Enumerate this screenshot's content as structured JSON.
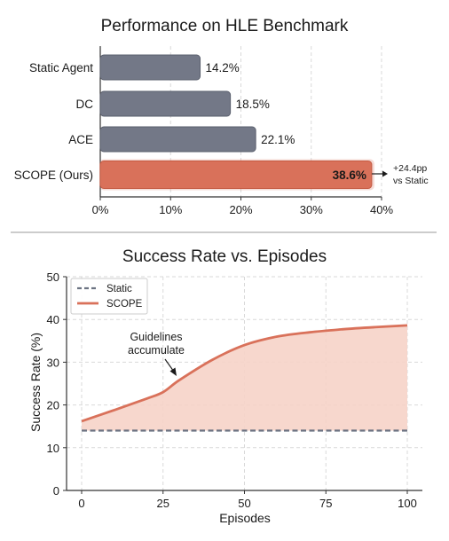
{
  "colors": {
    "bar_gray": "#737887",
    "bar_gray_stroke": "#5a5f6d",
    "scope": "#d9715a",
    "scope_fill": "#f6d3c8",
    "static_line": "#6c7382",
    "grid": "#d9d9d9",
    "axis": "#333333",
    "text": "#1a1a1a"
  },
  "chart_data": [
    {
      "type": "bar",
      "orientation": "horizontal",
      "title": "Performance on HLE Benchmark",
      "categories": [
        "Static Agent",
        "DC",
        "ACE",
        "SCOPE (Ours)"
      ],
      "values": [
        14.2,
        18.5,
        22.1,
        38.6
      ],
      "value_labels": [
        "14.2%",
        "18.5%",
        "22.1%",
        "38.6%"
      ],
      "highlight_index": 3,
      "xlim": [
        0,
        40
      ],
      "xticks": [
        0,
        10,
        20,
        30,
        40
      ],
      "xtick_labels": [
        "0%",
        "10%",
        "20%",
        "30%",
        "40%"
      ],
      "grid": true,
      "annotation": {
        "lines": [
          "+24.4pp",
          "vs Static"
        ]
      }
    },
    {
      "type": "line",
      "title": "Success Rate vs. Episodes",
      "xlabel": "Episodes",
      "ylabel": "Success Rate (%)",
      "xlim": [
        0,
        100
      ],
      "ylim": [
        0,
        50
      ],
      "xticks": [
        0,
        25,
        50,
        75,
        100
      ],
      "yticks": [
        0,
        10,
        20,
        30,
        40,
        50
      ],
      "grid": true,
      "legend_position": "top-left",
      "series": [
        {
          "name": "Static",
          "style": "dashed",
          "x": [
            0,
            100
          ],
          "y": [
            14,
            14
          ]
        },
        {
          "name": "SCOPE",
          "style": "solid",
          "x": [
            0,
            10,
            20,
            25,
            30,
            40,
            50,
            60,
            70,
            80,
            90,
            100
          ],
          "y": [
            16.2,
            18.8,
            21.5,
            23,
            25.8,
            30.5,
            34,
            36,
            37,
            37.7,
            38.2,
            38.6
          ]
        }
      ],
      "annotation": {
        "lines": [
          "Guidelines",
          "accumulate"
        ]
      }
    }
  ]
}
